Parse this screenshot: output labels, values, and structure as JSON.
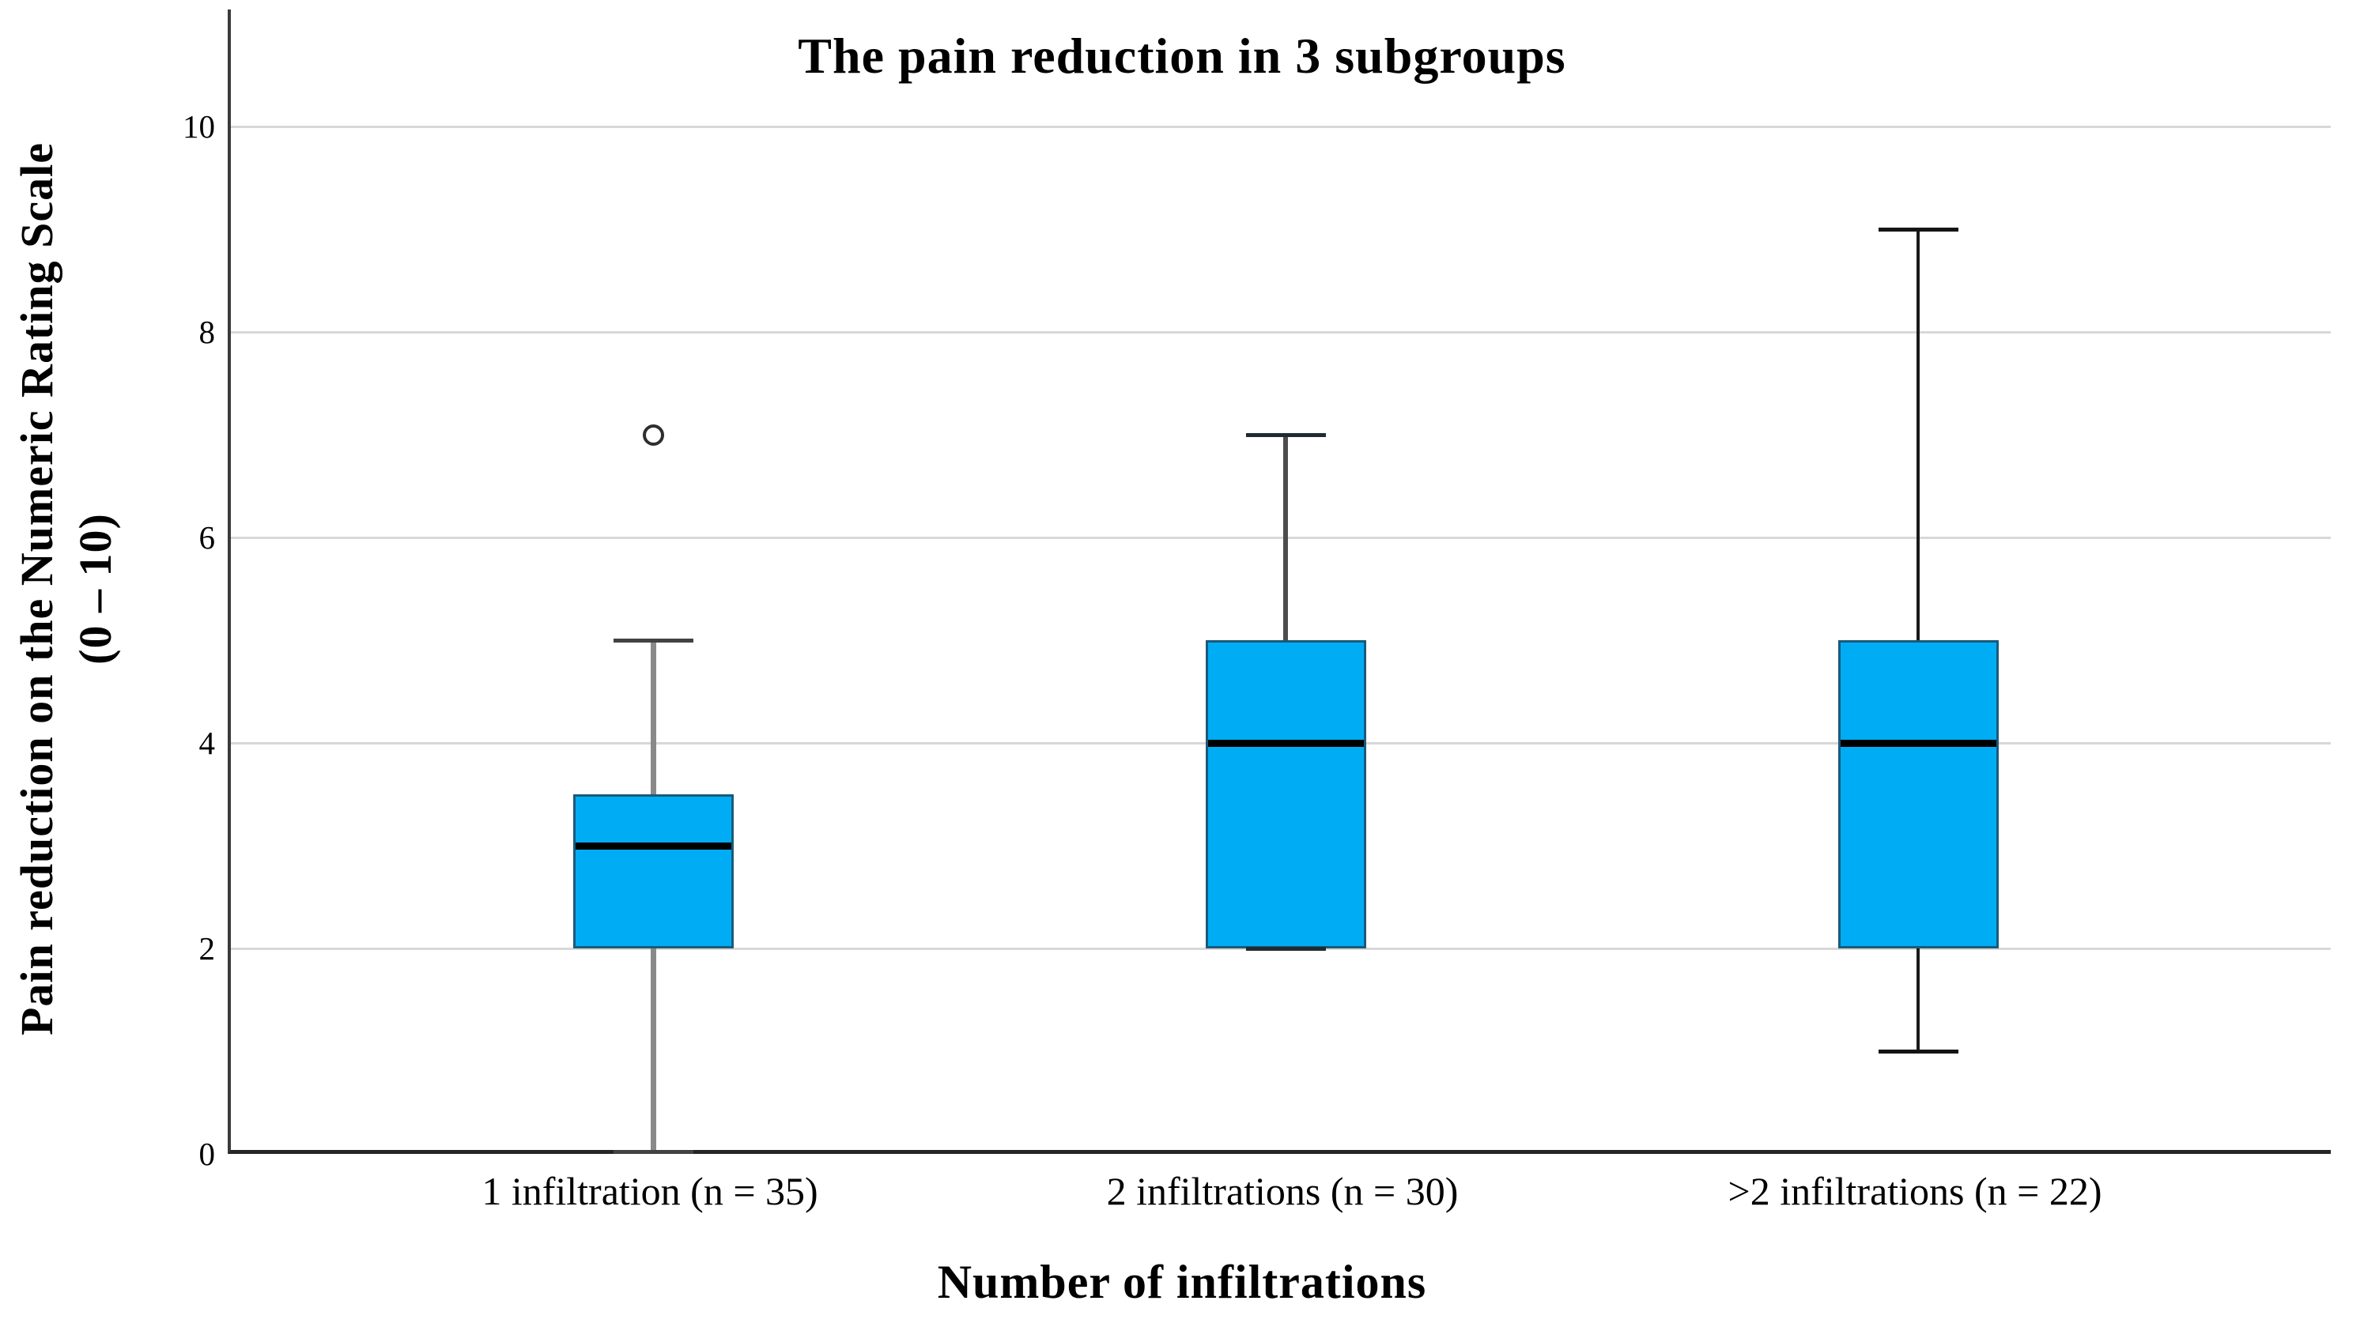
{
  "title": "The pain reduction in 3 subgroups",
  "x_axis": {
    "title": "Number of infiltrations"
  },
  "y_axis": {
    "title_line1": "Pain reduction on the Numeric Rating Scale",
    "title_line2": "(0 – 10)",
    "ticks": [
      0,
      2,
      4,
      6,
      8,
      10
    ]
  },
  "chart_data": {
    "type": "box",
    "title": "The pain reduction in 3 subgroups",
    "xlabel": "Number of infiltrations",
    "ylabel": "Pain reduction on the Numeric Rating Scale (0 – 10)",
    "ylim": [
      0,
      11
    ],
    "yticks": [
      0,
      2,
      4,
      6,
      8,
      10
    ],
    "grid": "horizontal",
    "legend": "none",
    "categories": [
      "1 infiltration (n = 35)",
      "2 infiltrations (n = 30)",
      ">2 infiltrations (n = 22)"
    ],
    "series": [
      {
        "name": "1 infiltration (n = 35)",
        "whisker_low": 0,
        "q1": 2,
        "median": 3,
        "q3": 3.5,
        "whisker_high": 5,
        "outliers": [
          7
        ]
      },
      {
        "name": "2 infiltrations (n = 30)",
        "whisker_low": 2,
        "q1": 2,
        "median": 4,
        "q3": 5,
        "whisker_high": 7,
        "outliers": []
      },
      {
        "name": ">2 infiltrations (n = 22)",
        "whisker_low": 1,
        "q1": 2,
        "median": 4,
        "q3": 5,
        "whisker_high": 9,
        "outliers": []
      }
    ],
    "colors": {
      "box_fill": "#00ADF5",
      "box_border": "#1A5A7A",
      "median": "#000000",
      "whisker_lines": [
        "#8a8a8a",
        "#4d4d4d",
        "#1a1a1a"
      ],
      "whisker_caps": [
        "#424242",
        "#1f2b33",
        "#141414"
      ],
      "gridline": "#d8d8d8",
      "axis": "#3a3a3a",
      "outlier_stroke": "#2e2e2e"
    }
  }
}
